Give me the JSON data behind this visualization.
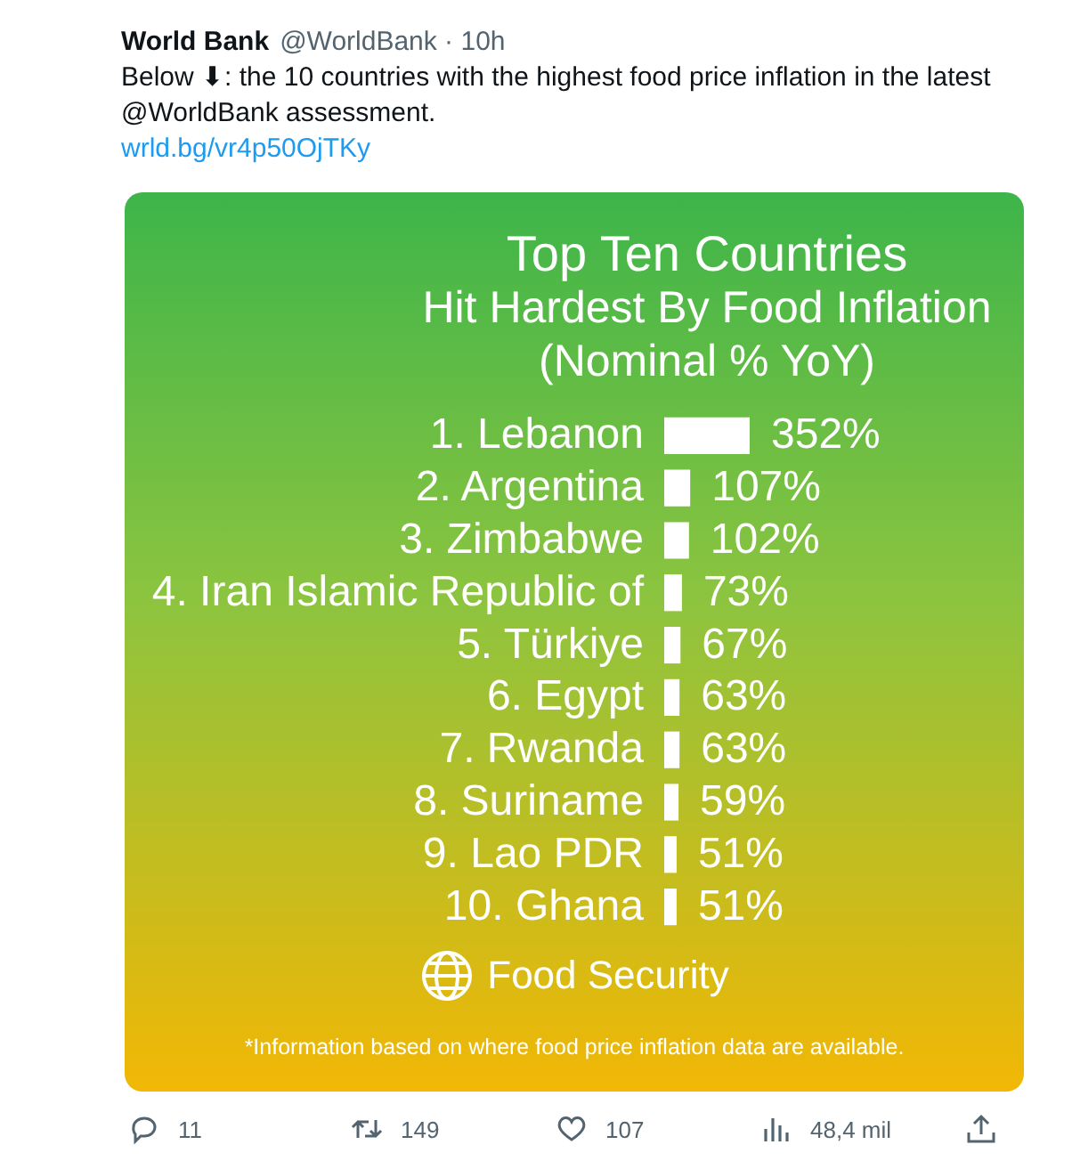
{
  "chart_data": {
    "type": "bar",
    "orientation": "horizontal",
    "title": "Top Ten Countries",
    "subtitle": "Hit Hardest By Food Inflation",
    "categories": [
      "1. Lebanon",
      "2. Argentina",
      "3. Zimbabwe",
      "4. Iran Islamic Republic of",
      "5. Türkiye",
      "6. Egypt",
      "7. Rwanda",
      "8. Suriname",
      "9. Lao PDR",
      "10. Ghana"
    ],
    "values": [
      352,
      107,
      102,
      73,
      67,
      63,
      63,
      59,
      51,
      51
    ],
    "value_labels": [
      "352%",
      "107%",
      "102%",
      "73%",
      "67%",
      "63%",
      "63%",
      "59%",
      "51%",
      "51%"
    ],
    "color": "#ffffff",
    "annotations": [
      "(Nominal % YoY)",
      "Food Security",
      "*Information based on where food price inflation data are available.",
      "World Bank",
      "@WorldBank · 10h",
      "Below ⬇: the 10 countries with the highest food price inflation in the latest @WorldBank assessment.",
      "wrld.bg/vr4p50OjTKy",
      "11",
      "149",
      "107",
      "48,4 mil"
    ]
  }
}
